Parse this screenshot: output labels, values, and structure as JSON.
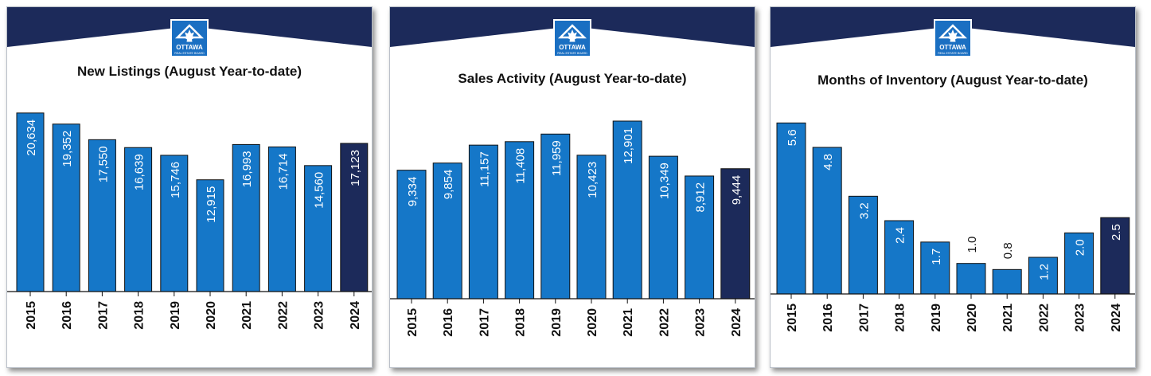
{
  "colors": {
    "navy": "#1c2a5a",
    "bar": "#1577c8",
    "highlight": "#1c2a5a"
  },
  "logo": {
    "text": "OTTAWA",
    "subtext": "REAL ESTATE BOARD"
  },
  "chart_data": [
    {
      "type": "bar",
      "title": "New Listings (August Year-to-date)",
      "categories": [
        "2015",
        "2016",
        "2017",
        "2018",
        "2019",
        "2020",
        "2021",
        "2022",
        "2023",
        "2024"
      ],
      "values": [
        20634,
        19352,
        17550,
        16639,
        15746,
        12915,
        16993,
        16714,
        14560,
        17123
      ],
      "labels": [
        "20,634",
        "19,352",
        "17,550",
        "16,639",
        "15,746",
        "12,915",
        "16,993",
        "16,714",
        "14,560",
        "17,123"
      ],
      "highlight_index": 9,
      "ylim": [
        0,
        22000
      ]
    },
    {
      "type": "bar",
      "title": "Sales Activity (August Year-to-date)",
      "categories": [
        "2015",
        "2016",
        "2017",
        "2018",
        "2019",
        "2020",
        "2021",
        "2022",
        "2023",
        "2024"
      ],
      "values": [
        9334,
        9854,
        11157,
        11408,
        11959,
        10423,
        12901,
        10349,
        8912,
        9444
      ],
      "labels": [
        "9,334",
        "9,854",
        "11,157",
        "11,408",
        "11,959",
        "10,423",
        "12,901",
        "10,349",
        "8,912",
        "9,444"
      ],
      "highlight_index": 9,
      "ylim": [
        0,
        14000
      ]
    },
    {
      "type": "bar",
      "title": "Months of Inventory   (August Year-to-date)",
      "categories": [
        "2015",
        "2016",
        "2017",
        "2018",
        "2019",
        "2020",
        "2021",
        "2022",
        "2023",
        "2024"
      ],
      "values": [
        5.6,
        4.8,
        3.2,
        2.4,
        1.7,
        1.0,
        0.8,
        1.2,
        2.0,
        2.5
      ],
      "labels": [
        "5.6",
        "4.8",
        "3.2",
        "2.4",
        "1.7",
        "1.0",
        "0.8",
        "1.2",
        "2.0",
        "2.5"
      ],
      "highlight_index": 9,
      "ylim": [
        0,
        6
      ]
    }
  ]
}
